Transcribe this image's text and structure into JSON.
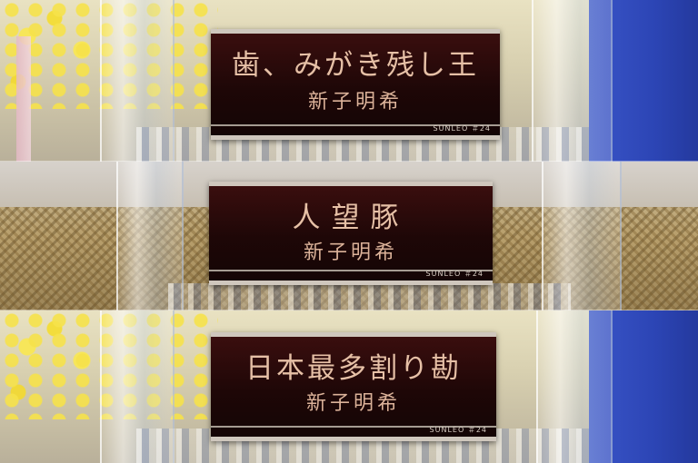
{
  "plaques": [
    {
      "title": "歯、みがき残し王",
      "name": "新子明希",
      "brand": "SUNLEO ＃24"
    },
    {
      "title": "人望豚",
      "name": "新子明希",
      "brand": "SUNLEO ＃24"
    },
    {
      "title": "日本最多割り勘",
      "name": "新子明希",
      "brand": "SUNLEO ＃24"
    }
  ],
  "colors": {
    "plaque_bg": "#1e0707",
    "engraving": "#e0b9a0",
    "trim": "#cfc7bd",
    "background_blue": "#2c45b5",
    "background_yellow": "#f6e24a"
  }
}
